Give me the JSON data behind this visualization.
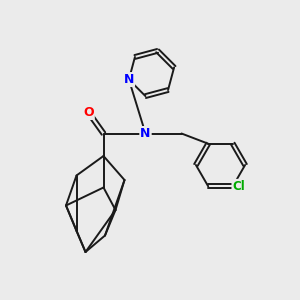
{
  "background_color": "#ebebeb",
  "bond_color": "#1a1a1a",
  "atom_colors": {
    "N": "#0000ff",
    "O": "#ff0000",
    "Cl": "#00aa00"
  },
  "atom_bg": "#ebebeb",
  "figsize": [
    3.0,
    3.0
  ],
  "dpi": 100,
  "lw": 1.4
}
